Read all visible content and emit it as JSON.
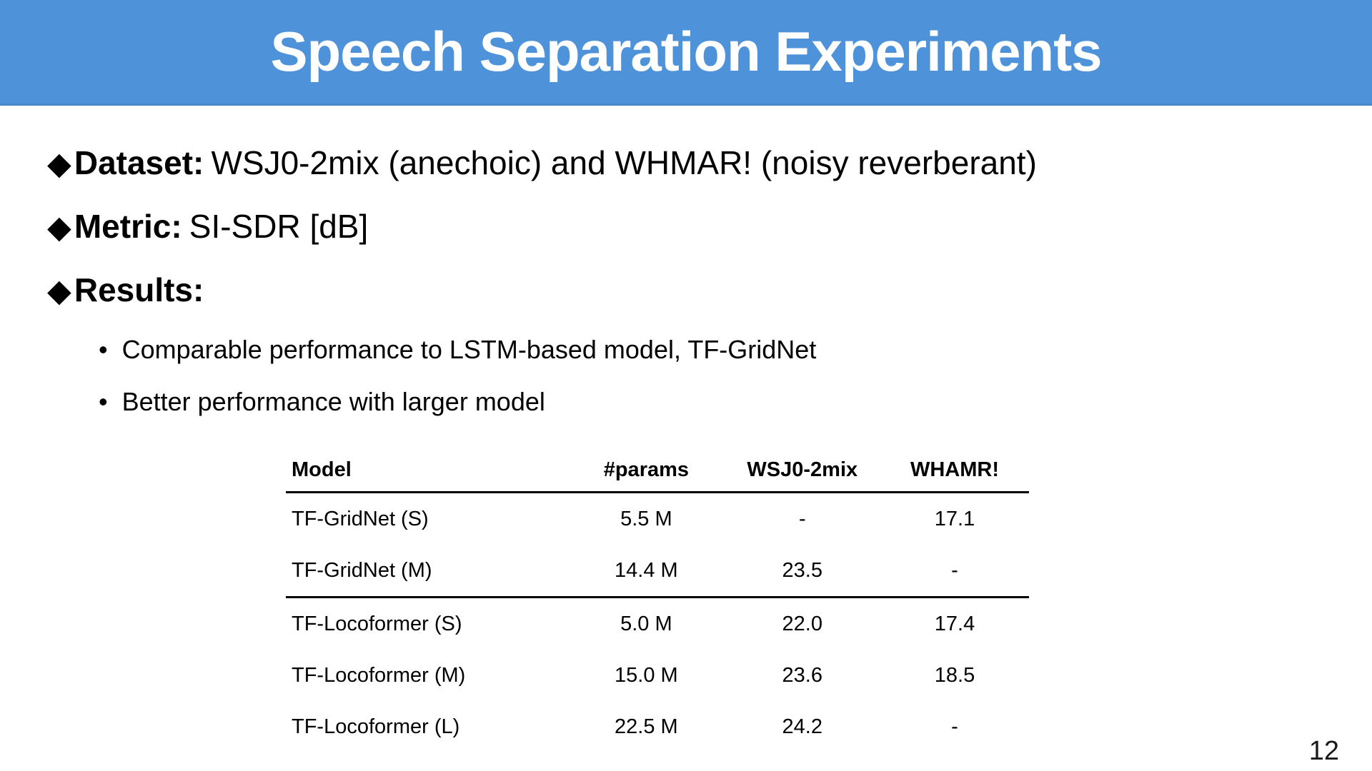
{
  "slide": {
    "title": "Speech Separation Experiments",
    "page_number": "12"
  },
  "colors": {
    "header_bg": "#4E93D9",
    "header_text": "#FFFFFF",
    "body_text": "#000000",
    "table_rule": "#000000"
  },
  "glyphs": {
    "diamond_bullet": "◆",
    "dot_bullet": "•"
  },
  "bullets": [
    {
      "label": "Dataset:",
      "text": "WSJ0-2mix (anechoic) and WHMAR! (noisy reverberant)"
    },
    {
      "label": "Metric:",
      "text": "SI-SDR [dB]"
    },
    {
      "label": "Results:",
      "text": ""
    }
  ],
  "sub_bullets": [
    "Comparable performance to LSTM-based model, TF-GridNet",
    "Better performance with larger model"
  ],
  "table": {
    "headers": [
      "Model",
      "#params",
      "WSJ0-2mix",
      "WHAMR!"
    ],
    "rows": [
      {
        "model": "TF-GridNet (S)",
        "params": "5.5 M",
        "wsj0_2mix": "-",
        "whamr": "17.1"
      },
      {
        "model": "TF-GridNet (M)",
        "params": "14.4 M",
        "wsj0_2mix": "23.5",
        "whamr": "-"
      },
      {
        "model": "TF-Locoformer (S)",
        "params": "5.0 M",
        "wsj0_2mix": "22.0",
        "whamr": "17.4"
      },
      {
        "model": "TF-Locoformer (M)",
        "params": "15.0 M",
        "wsj0_2mix": "23.6",
        "whamr": "18.5"
      },
      {
        "model": "TF-Locoformer (L)",
        "params": "22.5 M",
        "wsj0_2mix": "24.2",
        "whamr": "-"
      }
    ]
  }
}
